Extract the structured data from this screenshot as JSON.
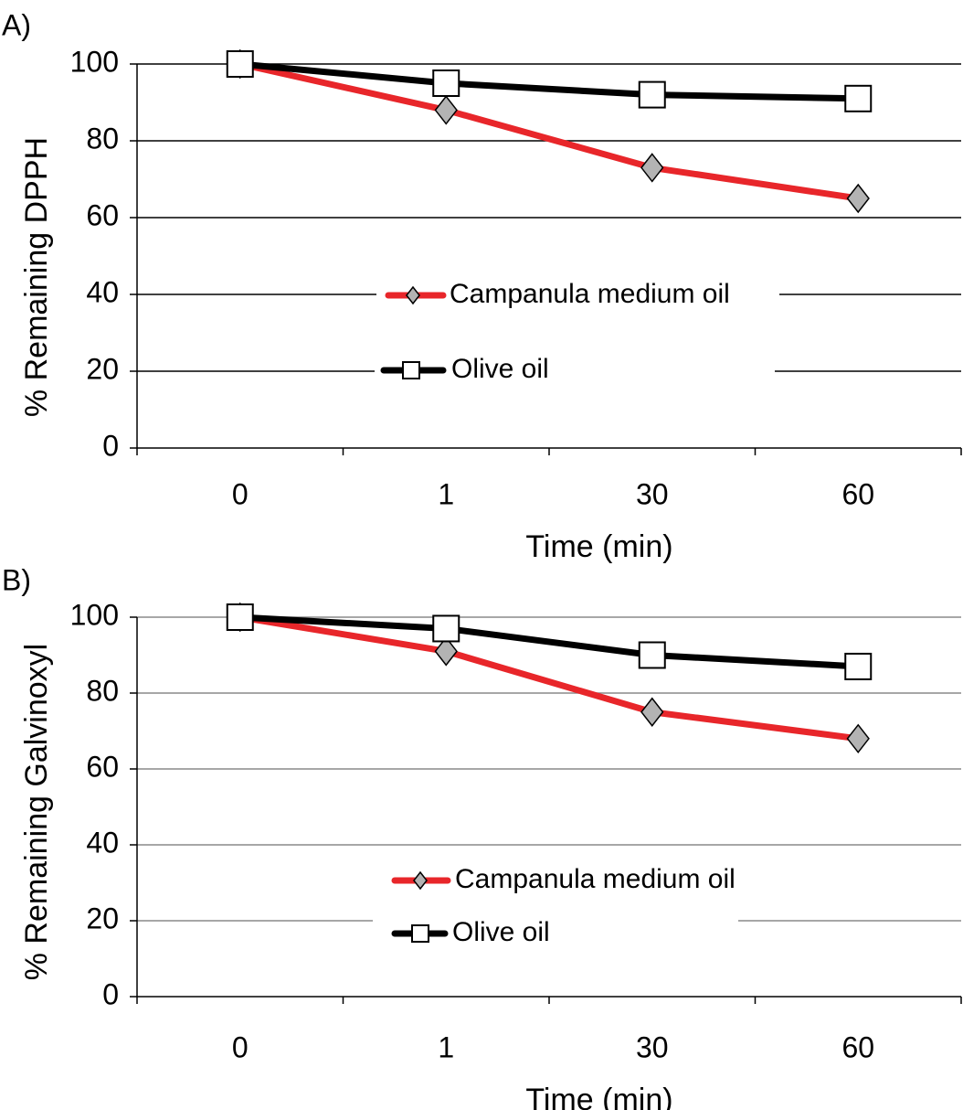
{
  "colors": {
    "campanula": "#e8262a",
    "olive": "#000000",
    "diamond_fill": "#b3b3b3",
    "square_fill": "#ffffff"
  },
  "chart_data": [
    {
      "type": "line",
      "panel_label": "A)",
      "categories": [
        "0",
        "1",
        "30",
        "60"
      ],
      "xlabel": "Time (min)",
      "ylabel": "% Remaining DPPH",
      "ylim": [
        0,
        100
      ],
      "yticks": [
        "0",
        "20",
        "40",
        "60",
        "80",
        "100"
      ],
      "grid": true,
      "legend_position": "center",
      "series": [
        {
          "name": "Campanula medium oil",
          "marker": "diamond",
          "values": [
            100,
            88,
            73,
            65
          ]
        },
        {
          "name": "Olive oil",
          "marker": "square",
          "values": [
            100,
            95,
            92,
            91
          ]
        }
      ]
    },
    {
      "type": "line",
      "panel_label": "B)",
      "categories": [
        "0",
        "1",
        "30",
        "60"
      ],
      "xlabel": "Time (min)",
      "ylabel": "% Remaining Galvinoxyl",
      "ylim": [
        0,
        100
      ],
      "yticks": [
        "0",
        "20",
        "40",
        "60",
        "80",
        "100"
      ],
      "grid": true,
      "legend_position": "lower-center",
      "series": [
        {
          "name": "Campanula medium oil",
          "marker": "diamond",
          "values": [
            100,
            91,
            75,
            68
          ]
        },
        {
          "name": "Olive oil",
          "marker": "square",
          "values": [
            100,
            97,
            90,
            87
          ]
        }
      ]
    }
  ]
}
